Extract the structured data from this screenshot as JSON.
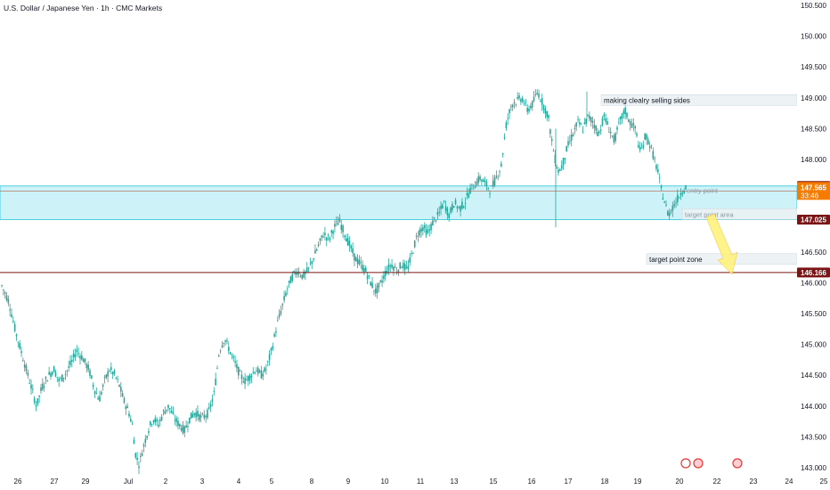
{
  "window": {
    "symbol_title": "U.S. Dollar / Japanese Yen · 1h · CMC Markets"
  },
  "colors": {
    "up": "#26a69a",
    "down": "#26a69a",
    "zone_fill": "#b2ebf2",
    "zone_border": "#26c6da",
    "resistance_line": "#7b1414",
    "entry_line": "#b25f4a",
    "arrow": "#fff176",
    "price_tag": "#f57c00",
    "level_tag": "#7b1414"
  },
  "chart_data": {
    "type": "candlestick",
    "title": "U.S. Dollar / Japanese Yen · 1h · CMC Markets",
    "ylim": [
      143.0,
      150.5
    ],
    "y_ticks": [
      "150.500",
      "150.000",
      "149.500",
      "149.000",
      "148.500",
      "148.000",
      "147.500",
      "147.000",
      "146.500",
      "146.000",
      "145.500",
      "145.000",
      "144.500",
      "144.000",
      "143.500",
      "143.000"
    ],
    "x_ticks": [
      "26",
      "27",
      "29",
      "Jul",
      "2",
      "3",
      "4",
      "5",
      "8",
      "9",
      "10",
      "11",
      "13",
      "15",
      "16",
      "17",
      "18",
      "19",
      "20",
      "22",
      "23",
      "24",
      "25"
    ],
    "series": [
      {
        "close_path": [
          [
            0,
            145.95
          ],
          [
            0.4,
            145.7
          ],
          [
            0.8,
            145.2
          ],
          [
            1.2,
            144.8
          ],
          [
            1.5,
            144.5
          ],
          [
            1.8,
            144.2
          ],
          [
            2.0,
            144.0
          ],
          [
            2.3,
            144.3
          ],
          [
            2.7,
            144.5
          ],
          [
            3.0,
            144.6
          ],
          [
            3.3,
            144.4
          ],
          [
            3.6,
            144.5
          ],
          [
            4.0,
            144.7
          ],
          [
            4.3,
            144.9
          ],
          [
            4.6,
            144.8
          ],
          [
            5.0,
            144.6
          ],
          [
            5.3,
            144.3
          ],
          [
            5.6,
            144.1
          ],
          [
            5.9,
            144.4
          ],
          [
            6.2,
            144.6
          ],
          [
            6.5,
            144.5
          ],
          [
            6.8,
            144.3
          ],
          [
            7.0,
            144.1
          ],
          [
            7.3,
            143.9
          ],
          [
            7.5,
            143.7
          ],
          [
            7.7,
            143.2
          ],
          [
            7.9,
            143.05
          ],
          [
            8.1,
            143.3
          ],
          [
            8.4,
            143.6
          ],
          [
            8.7,
            143.8
          ],
          [
            9.0,
            143.7
          ],
          [
            9.3,
            143.9
          ],
          [
            9.6,
            144.0
          ],
          [
            9.9,
            143.8
          ],
          [
            10.2,
            143.7
          ],
          [
            10.5,
            143.6
          ],
          [
            10.8,
            143.8
          ],
          [
            11.1,
            143.9
          ],
          [
            11.5,
            143.8
          ],
          [
            11.9,
            143.9
          ],
          [
            12.2,
            144.2
          ],
          [
            12.5,
            144.9
          ],
          [
            12.8,
            145.1
          ],
          [
            13.1,
            144.9
          ],
          [
            13.4,
            144.7
          ],
          [
            13.7,
            144.5
          ],
          [
            14.0,
            144.4
          ],
          [
            14.3,
            144.5
          ],
          [
            14.6,
            144.6
          ],
          [
            14.9,
            144.5
          ],
          [
            15.2,
            144.6
          ],
          [
            15.5,
            144.9
          ],
          [
            15.8,
            145.3
          ],
          [
            16.1,
            145.6
          ],
          [
            16.4,
            145.9
          ],
          [
            16.7,
            146.1
          ],
          [
            17.0,
            146.2
          ],
          [
            17.3,
            146.1
          ],
          [
            17.6,
            146.2
          ],
          [
            17.9,
            146.4
          ],
          [
            18.2,
            146.6
          ],
          [
            18.5,
            146.8
          ],
          [
            18.8,
            146.7
          ],
          [
            19.1,
            146.9
          ],
          [
            19.4,
            147.0
          ],
          [
            19.7,
            146.8
          ],
          [
            20.0,
            146.6
          ],
          [
            20.3,
            146.4
          ],
          [
            20.6,
            146.3
          ],
          [
            20.9,
            146.2
          ],
          [
            21.2,
            146.0
          ],
          [
            21.5,
            145.85
          ],
          [
            21.8,
            146.0
          ],
          [
            22.1,
            146.2
          ],
          [
            22.4,
            146.3
          ],
          [
            22.7,
            146.2
          ],
          [
            23.0,
            146.3
          ],
          [
            23.3,
            146.2
          ],
          [
            23.6,
            146.5
          ],
          [
            23.9,
            146.8
          ],
          [
            24.2,
            146.9
          ],
          [
            24.5,
            146.8
          ],
          [
            24.8,
            147.0
          ],
          [
            25.1,
            147.1
          ],
          [
            25.4,
            147.3
          ],
          [
            25.7,
            147.1
          ],
          [
            26.0,
            147.3
          ],
          [
            26.3,
            147.2
          ],
          [
            26.6,
            147.3
          ],
          [
            26.9,
            147.5
          ],
          [
            27.2,
            147.6
          ],
          [
            27.5,
            147.7
          ],
          [
            27.8,
            147.6
          ],
          [
            28.1,
            147.5
          ],
          [
            28.4,
            147.7
          ],
          [
            28.7,
            147.9
          ],
          [
            29.0,
            148.6
          ],
          [
            29.3,
            148.9
          ],
          [
            29.6,
            148.95
          ],
          [
            29.9,
            149.0
          ],
          [
            30.2,
            148.8
          ],
          [
            30.5,
            148.9
          ],
          [
            30.8,
            149.1
          ],
          [
            31.1,
            148.9
          ],
          [
            31.4,
            148.7
          ],
          [
            31.6,
            148.3
          ],
          [
            31.8,
            148.0
          ],
          [
            32.0,
            147.8
          ],
          [
            32.2,
            147.9
          ],
          [
            32.5,
            148.2
          ],
          [
            32.8,
            148.4
          ],
          [
            33.1,
            148.6
          ],
          [
            33.4,
            148.5
          ],
          [
            33.7,
            148.7
          ],
          [
            34.0,
            148.6
          ],
          [
            34.3,
            148.4
          ],
          [
            34.6,
            148.7
          ],
          [
            34.9,
            148.5
          ],
          [
            35.2,
            148.3
          ],
          [
            35.5,
            148.6
          ],
          [
            35.8,
            148.8
          ],
          [
            36.1,
            148.6
          ],
          [
            36.4,
            148.5
          ],
          [
            36.7,
            148.1
          ],
          [
            37.0,
            148.4
          ],
          [
            37.3,
            148.2
          ],
          [
            37.5,
            148.0
          ],
          [
            37.7,
            147.8
          ],
          [
            37.9,
            147.5
          ],
          [
            38.1,
            147.3
          ],
          [
            38.3,
            147.1
          ],
          [
            38.5,
            147.2
          ],
          [
            38.7,
            147.3
          ],
          [
            38.9,
            147.4
          ],
          [
            39.1,
            147.5
          ],
          [
            39.3,
            147.55
          ]
        ],
        "name": ""
      }
    ],
    "zones": [
      {
        "label": "",
        "top": 147.57,
        "bottom": 147.025
      }
    ],
    "levels": [
      {
        "value": 146.166,
        "label": "146.166"
      },
      {
        "value": 147.57,
        "label": "147.570"
      },
      {
        "value": 147.025,
        "label": "147.025"
      }
    ],
    "annotations": [
      {
        "text": "making clealry selling sides",
        "price": 148.95
      },
      {
        "text": "entry point",
        "price": 147.49
      },
      {
        "text": "target point area",
        "price": 147.1
      },
      {
        "text": "target point zone",
        "price": 146.37
      }
    ],
    "last_price": {
      "value": "147.565",
      "countdown": "33:46"
    }
  }
}
